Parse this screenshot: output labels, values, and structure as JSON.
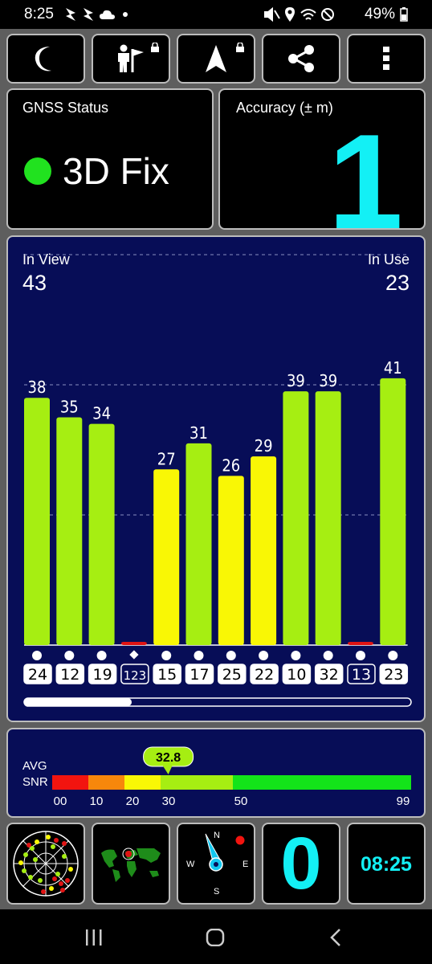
{
  "status_bar": {
    "time": "8:25",
    "left_icons": [
      "notify-arrow-icon",
      "notify-arrow-icon",
      "cloud-icon",
      "dot-icon"
    ],
    "right_icons": [
      "mute-icon",
      "location-icon",
      "wifi-icon",
      "dnd-icon",
      "battery-icon"
    ],
    "battery": "49%"
  },
  "toolbar": {
    "buttons": [
      {
        "name": "night-mode-button",
        "icon": "moon-icon",
        "locked": false
      },
      {
        "name": "status-button",
        "icon": "person-flag-icon",
        "locked": true
      },
      {
        "name": "navigate-button",
        "icon": "navigation-arrow-icon",
        "locked": true
      },
      {
        "name": "share-button",
        "icon": "share-icon",
        "locked": false
      },
      {
        "name": "menu-button",
        "icon": "more-vertical-icon",
        "locked": false
      }
    ]
  },
  "gnss": {
    "label": "GNSS Status",
    "fix": "3D Fix",
    "fix_color": "#21e21f"
  },
  "accuracy": {
    "label": "Accuracy (± m)",
    "value": "1",
    "color": "#13f0f5"
  },
  "satellites": {
    "in_view_label": "In View",
    "in_view": "43",
    "in_use_label": "In Use",
    "in_use": "23"
  },
  "chart_data": {
    "type": "bar",
    "categories": [
      "24",
      "12",
      "19",
      "123",
      "15",
      "17",
      "25",
      "22",
      "10",
      "32",
      "13",
      "23"
    ],
    "values": [
      38,
      35,
      34,
      0,
      27,
      31,
      26,
      29,
      39,
      39,
      0,
      41
    ],
    "value_labels": [
      "38",
      "35",
      "34",
      "",
      "27",
      "31",
      "26",
      "29",
      "39",
      "39",
      "",
      "41"
    ],
    "used": [
      true,
      true,
      true,
      false,
      true,
      true,
      true,
      true,
      true,
      true,
      false,
      true
    ],
    "markers": [
      "circle",
      "circle",
      "circle",
      "diamond",
      "circle",
      "circle",
      "circle",
      "circle",
      "circle",
      "circle",
      "circle",
      "circle"
    ],
    "ylim": [
      0,
      60
    ],
    "gridlines": [
      20,
      40,
      60
    ],
    "grid": true,
    "colors": {
      "high": "#a6ee12",
      "mid": "#f9f705",
      "low": "#e01414"
    }
  },
  "snr": {
    "label_line1": "AVG",
    "label_line2": "SNR",
    "avg": "32.8",
    "avg_value": 32.8,
    "ticks": [
      "00",
      "10",
      "20",
      "30",
      "50",
      "99"
    ],
    "segments": [
      {
        "to": 10,
        "color": "#f2140f"
      },
      {
        "to": 20,
        "color": "#f7870b"
      },
      {
        "to": 30,
        "color": "#f9f705"
      },
      {
        "to": 50,
        "color": "#a6ee12"
      },
      {
        "to": 99,
        "color": "#13e419"
      }
    ]
  },
  "bottom": {
    "tiles": [
      "radar-view-tile",
      "world-map-tile",
      "compass-tile",
      "speed-tile",
      "clock-tile"
    ],
    "compass": {
      "n": "N",
      "e": "E",
      "s": "S",
      "w": "W"
    },
    "speed": "0",
    "clock": "08:25",
    "accent": "#13f0f5"
  },
  "nav": {
    "icons": [
      "recent-apps-icon",
      "home-icon",
      "back-icon"
    ]
  }
}
